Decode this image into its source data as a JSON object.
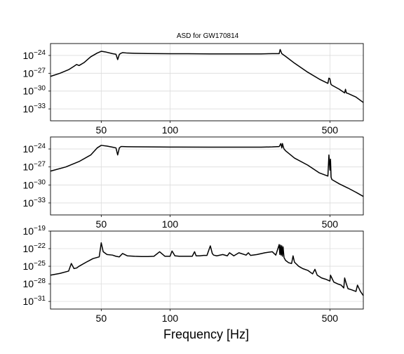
{
  "title": "ASD for GW170814",
  "xlabel": "Frequency [Hz]",
  "chart_data": [
    {
      "type": "line",
      "xscale": "log",
      "yscale": "log",
      "xlim": [
        30,
        700
      ],
      "ylim": [
        1e-35,
        1e-22
      ],
      "grid": true,
      "xticks": [
        50,
        100,
        500
      ],
      "xtick_labels": [
        "50",
        "100",
        "500"
      ],
      "yticks": [
        1e-33,
        1e-30,
        1e-27,
        1e-24
      ],
      "ytick_labels": [
        {
          "base": "10",
          "exp": "−33"
        },
        {
          "base": "10",
          "exp": "−30"
        },
        {
          "base": "10",
          "exp": "−27"
        },
        {
          "base": "10",
          "exp": "−24"
        }
      ],
      "series": [
        {
          "x": [
            30,
            33,
            36,
            38,
            39,
            40,
            42,
            45,
            48,
            50,
            52,
            56,
            58,
            59,
            60,
            61,
            62,
            65,
            70,
            80,
            90,
            100,
            120,
            150,
            200,
            250,
            280,
            300,
            303,
            308,
            320,
            350,
            400,
            450,
            490,
            495,
            500,
            505,
            510,
            550,
            580,
            585,
            590,
            600,
            650,
            700
          ],
          "y": [
            3e-28,
            1e-27,
            4e-27,
            1.5e-26,
            3e-26,
            2e-26,
            6e-26,
            6e-25,
            2.5e-24,
            5e-24,
            4e-24,
            2e-24,
            1.6e-24,
            2e-25,
            1.5e-24,
            2.3e-24,
            3e-24,
            2.5e-24,
            2.3e-24,
            2.1e-24,
            2e-24,
            1.9e-24,
            1.9e-24,
            1.8e-24,
            1.8e-24,
            1.8e-24,
            2e-24,
            2e-24,
            1e-23,
            2e-24,
            7e-25,
            5e-26,
            1.5e-27,
            1e-28,
            2e-29,
            1.5e-28,
            1.2e-28,
            1.5e-29,
            1e-29,
            2e-30,
            5e-31,
            2e-30,
            5e-31,
            4e-31,
            1e-31,
            1.2e-32
          ]
        }
      ]
    },
    {
      "type": "line",
      "xscale": "log",
      "yscale": "log",
      "xlim": [
        30,
        700
      ],
      "ylim": [
        1e-35,
        1e-22
      ],
      "grid": true,
      "xticks": [
        50,
        100,
        500
      ],
      "xtick_labels": [
        "50",
        "100",
        "500"
      ],
      "yticks": [
        1e-33,
        1e-30,
        1e-27,
        1e-24
      ],
      "ytick_labels": [
        {
          "base": "10",
          "exp": "−33"
        },
        {
          "base": "10",
          "exp": "−30"
        },
        {
          "base": "10",
          "exp": "−27"
        },
        {
          "base": "10",
          "exp": "−24"
        }
      ],
      "series": [
        {
          "x": [
            30,
            35,
            40,
            45,
            48,
            50,
            53,
            56,
            58,
            59,
            60,
            61,
            62,
            65,
            70,
            80,
            100,
            150,
            200,
            250,
            280,
            300,
            305,
            308,
            310,
            313,
            315,
            320,
            350,
            400,
            450,
            490,
            495,
            500,
            503,
            506,
            510,
            550,
            600,
            650,
            700
          ],
          "y": [
            2e-28,
            1e-27,
            8e-27,
            1e-25,
            1.5e-24,
            4e-24,
            3e-24,
            2e-24,
            1.5e-24,
            1e-25,
            1.5e-24,
            2.5e-24,
            2.5e-24,
            2.4e-24,
            2.3e-24,
            2.2e-24,
            2.1e-24,
            2e-24,
            2e-24,
            2e-24,
            2.2e-24,
            2.5e-24,
            8e-24,
            1.5e-24,
            8e-24,
            2e-24,
            1e-24,
            5e-25,
            3e-26,
            2e-27,
            1e-28,
            3e-29,
            1e-25,
            3e-28,
            2e-26,
            2e-29,
            8e-30,
            1.5e-30,
            3e-31,
            6e-32,
            1.2e-32
          ]
        }
      ]
    },
    {
      "type": "line",
      "xscale": "log",
      "yscale": "log",
      "xlim": [
        30,
        700
      ],
      "ylim": [
        5e-33,
        1e-19
      ],
      "grid": true,
      "xticks": [
        50,
        100,
        500
      ],
      "xtick_labels": [
        "50",
        "100",
        "500"
      ],
      "yticks": [
        1e-31,
        1e-28,
        1e-25,
        1e-22,
        1e-19
      ],
      "ytick_labels": [
        {
          "base": "10",
          "exp": "−31"
        },
        {
          "base": "10",
          "exp": "−28"
        },
        {
          "base": "10",
          "exp": "−25"
        },
        {
          "base": "10",
          "exp": "−22"
        },
        {
          "base": "10",
          "exp": "−19"
        }
      ],
      "series": [
        {
          "x": [
            30,
            33,
            36,
            37,
            38,
            39,
            40,
            43,
            46,
            49,
            50,
            51,
            53,
            56,
            58,
            60,
            62,
            65,
            70,
            75,
            80,
            85,
            90,
            95,
            100,
            102,
            105,
            110,
            115,
            120,
            125,
            128,
            130,
            135,
            140,
            145,
            150,
            153,
            155,
            160,
            170,
            178,
            182,
            190,
            200,
            215,
            220,
            225,
            240,
            260,
            280,
            290,
            300,
            302,
            304,
            306,
            308,
            310,
            312,
            315,
            320,
            330,
            340,
            345,
            350,
            365,
            380,
            400,
            420,
            430,
            440,
            460,
            480,
            500,
            503,
            520,
            540,
            560,
            575,
            580,
            590,
            600,
            620,
            650,
            660,
            680,
            700
          ],
          "y": [
            3e-27,
            6e-27,
            1.5e-26,
            3e-25,
            4e-26,
            5e-26,
            1e-25,
            5e-25,
            2e-24,
            4e-24,
            1e-21,
            3e-23,
            1e-23,
            8e-24,
            5e-24,
            4e-24,
            1.5e-23,
            6e-24,
            5e-24,
            4.5e-24,
            4.5e-24,
            5e-24,
            3e-23,
            5e-24,
            5e-24,
            4e-23,
            6e-24,
            5e-24,
            5e-24,
            5e-24,
            5e-24,
            3e-23,
            6e-24,
            6e-24,
            7e-24,
            7e-24,
            3e-22,
            1.5e-23,
            8e-24,
            6e-24,
            1e-23,
            6e-24,
            2e-23,
            6e-24,
            2e-23,
            8e-24,
            2e-23,
            7e-24,
            1e-23,
            2e-23,
            3e-23,
            8e-24,
            5e-22,
            1e-23,
            4e-22,
            8e-24,
            3e-22,
            5e-24,
            2e-22,
            3e-24,
            1e-24,
            4e-25,
            3e-25,
            6e-24,
            5e-25,
            1e-25,
            4e-26,
            2e-26,
            5e-27,
            3e-26,
            3e-27,
            1e-27,
            6e-28,
            3e-28,
            3e-27,
            2e-28,
            1e-28,
            6e-29,
            2e-29,
            1e-27,
            1e-28,
            1.5e-29,
            1e-29,
            5e-30,
            6e-29,
            5e-30,
            1e-30
          ]
        }
      ]
    }
  ]
}
